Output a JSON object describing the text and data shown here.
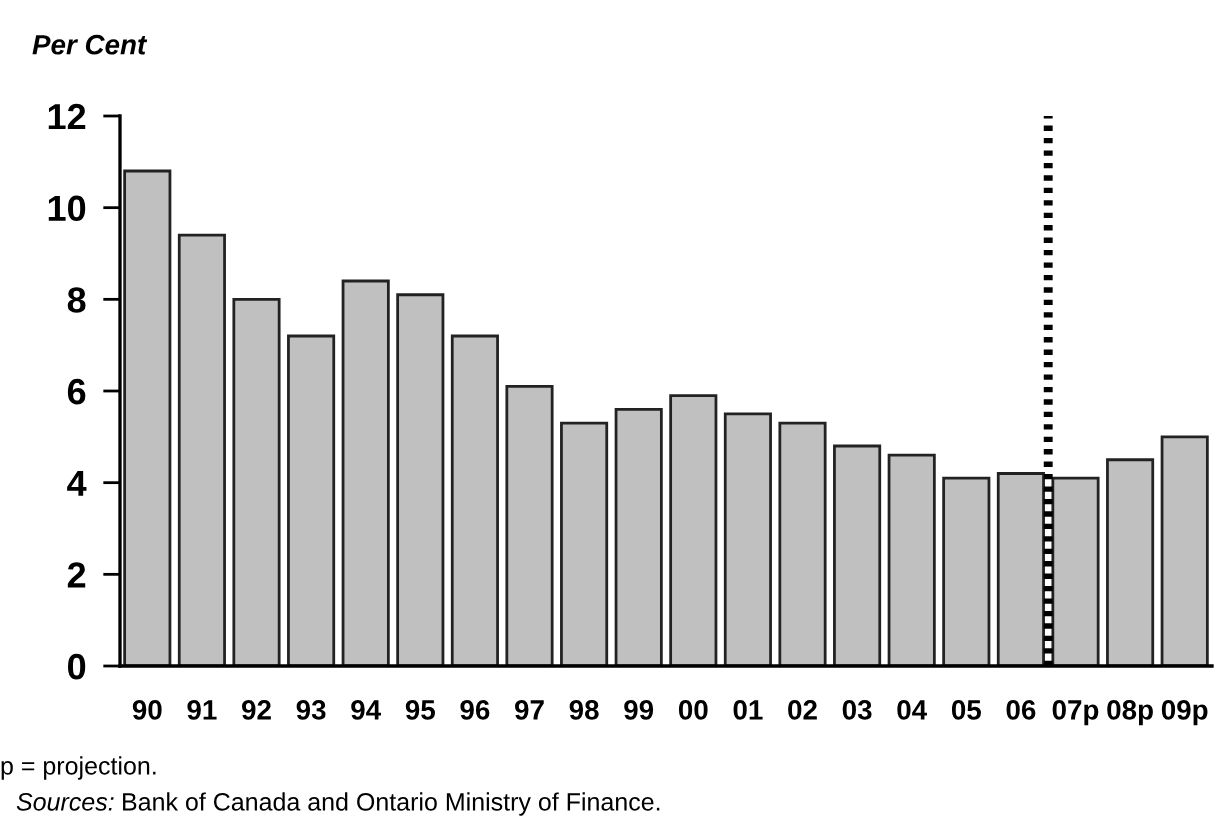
{
  "chart_data": {
    "type": "bar",
    "ylabel": "Per Cent",
    "categories": [
      "90",
      "91",
      "92",
      "93",
      "94",
      "95",
      "96",
      "97",
      "98",
      "99",
      "00",
      "01",
      "02",
      "03",
      "04",
      "05",
      "06",
      "07p",
      "08p",
      "09p"
    ],
    "values": [
      10.8,
      9.4,
      8.0,
      7.2,
      8.4,
      8.1,
      7.2,
      6.1,
      5.3,
      5.6,
      5.9,
      5.5,
      5.3,
      4.8,
      4.6,
      4.1,
      4.2,
      4.1,
      4.5,
      5.0
    ],
    "color": "#c0c0c0",
    "ylim": [
      0,
      12
    ],
    "yticks": [
      0,
      2,
      4,
      6,
      8,
      10,
      12
    ],
    "annotations": [
      "p = projection.",
      "Sources: Bank of Canada and Ontario Ministry of Finance."
    ]
  }
}
